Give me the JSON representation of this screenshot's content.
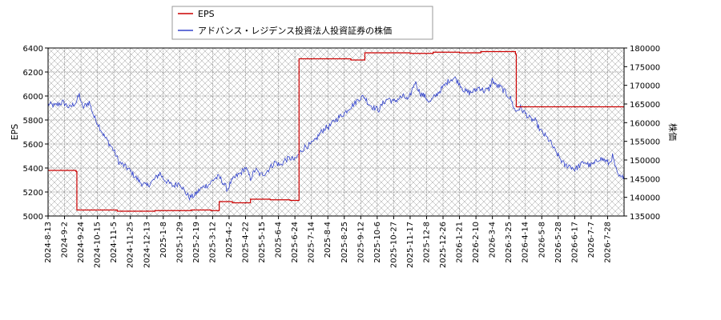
{
  "chart_data": {
    "type": "line",
    "title": "",
    "xlabel": "",
    "y_left_label": "EPS",
    "y_right_label": "株価",
    "y_left_range": [
      5000,
      6400
    ],
    "y_right_range": [
      135000,
      180000
    ],
    "y_left_ticks": [
      5000,
      5200,
      5400,
      5600,
      5800,
      6000,
      6200,
      6400
    ],
    "y_right_ticks": [
      "135000",
      "140000",
      "145000",
      "150000",
      "155000",
      "160000",
      "165000",
      "170000",
      "175000",
      "180000"
    ],
    "x_ticks": [
      "2024-8-13",
      "2024-9-2",
      "2024-9-24",
      "2024-10-15",
      "2024-11-5",
      "2024-11-25",
      "2024-12-13",
      "2025-1-8",
      "2025-1-29",
      "2025-2-19",
      "2025-3-12",
      "2025-4-2",
      "2025-4-22",
      "2025-5-15",
      "2025-6-4",
      "2025-6-24",
      "2025-7-14",
      "2025-8-4",
      "2025-8-25",
      "2025-9-12",
      "2025-10-6",
      "2025-10-27",
      "2025-11-17",
      "2025-12-8",
      "2025-12-26",
      "2026-1-21",
      "2026-2-10",
      "2026-3-4",
      "2026-3-25",
      "2026-4-14",
      "2026-5-8",
      "2026-5-28",
      "2026-6-17",
      "2026-7-7",
      "2026-7-28"
    ],
    "grid": true,
    "legend_position": "top-left",
    "colors": {
      "eps": "#cc0000",
      "price": "#3344cc",
      "grid": "#888888"
    },
    "series": [
      {
        "name": "EPS",
        "axis": "left",
        "steps": [
          [
            0,
            5380
          ],
          [
            1.7,
            5370
          ],
          [
            1.75,
            5050
          ],
          [
            4.2,
            5040
          ],
          [
            6.5,
            5045
          ],
          [
            8.7,
            5050
          ],
          [
            9.9,
            5045
          ],
          [
            10.4,
            5120
          ],
          [
            11.2,
            5110
          ],
          [
            12.3,
            5140
          ],
          [
            13.5,
            5135
          ],
          [
            14.7,
            5130
          ],
          [
            15.25,
            6310
          ],
          [
            18.4,
            6300
          ],
          [
            19.25,
            6360
          ],
          [
            22.0,
            6355
          ],
          [
            23.4,
            6365
          ],
          [
            25.0,
            6360
          ],
          [
            26.3,
            6370
          ],
          [
            28.4,
            6350
          ],
          [
            28.45,
            5910
          ],
          [
            35.0,
            5905
          ]
        ]
      },
      {
        "name": "アドバンス・レジデンス投資法人投資証券の株価",
        "axis": "right",
        "anchors": [
          [
            0,
            165000
          ],
          [
            0.4,
            164500
          ],
          [
            0.9,
            165500
          ],
          [
            1.3,
            164000
          ],
          [
            1.7,
            165500
          ],
          [
            1.9,
            167500
          ],
          [
            2.1,
            164000
          ],
          [
            2.5,
            165500
          ],
          [
            2.8,
            161500
          ],
          [
            3.0,
            160000
          ],
          [
            3.4,
            156500
          ],
          [
            3.7,
            154500
          ],
          [
            4.0,
            152500
          ],
          [
            4.3,
            149500
          ],
          [
            4.6,
            148500
          ],
          [
            4.9,
            147500
          ],
          [
            5.3,
            145500
          ],
          [
            5.6,
            144000
          ],
          [
            6.0,
            143000
          ],
          [
            6.4,
            144500
          ],
          [
            6.8,
            146500
          ],
          [
            7.0,
            145000
          ],
          [
            7.3,
            144000
          ],
          [
            7.6,
            143000
          ],
          [
            8.0,
            144000
          ],
          [
            8.3,
            141500
          ],
          [
            8.6,
            140000
          ],
          [
            8.9,
            140500
          ],
          [
            9.2,
            142000
          ],
          [
            9.5,
            143000
          ],
          [
            9.8,
            143500
          ],
          [
            10.1,
            145000
          ],
          [
            10.4,
            145500
          ],
          [
            10.7,
            143500
          ],
          [
            10.9,
            142000
          ],
          [
            11.1,
            144000
          ],
          [
            11.4,
            145500
          ],
          [
            11.7,
            146500
          ],
          [
            12.0,
            148000
          ],
          [
            12.3,
            145000
          ],
          [
            12.6,
            147500
          ],
          [
            12.9,
            146000
          ],
          [
            13.2,
            146500
          ],
          [
            13.5,
            148000
          ],
          [
            13.8,
            149500
          ],
          [
            14.1,
            148500
          ],
          [
            14.4,
            150000
          ],
          [
            14.7,
            150500
          ],
          [
            15.0,
            150000
          ],
          [
            15.3,
            152000
          ],
          [
            15.6,
            153500
          ],
          [
            15.9,
            154000
          ],
          [
            16.2,
            155000
          ],
          [
            16.5,
            157000
          ],
          [
            16.8,
            158500
          ],
          [
            17.1,
            159000
          ],
          [
            17.4,
            160500
          ],
          [
            17.7,
            161500
          ],
          [
            18.0,
            162500
          ],
          [
            18.3,
            164000
          ],
          [
            18.6,
            165000
          ],
          [
            18.9,
            166500
          ],
          [
            19.2,
            167000
          ],
          [
            19.5,
            165000
          ],
          [
            19.8,
            164000
          ],
          [
            20.1,
            163500
          ],
          [
            20.4,
            165500
          ],
          [
            20.7,
            166500
          ],
          [
            21.0,
            165500
          ],
          [
            21.3,
            166500
          ],
          [
            21.6,
            167000
          ],
          [
            21.9,
            166000
          ],
          [
            22.1,
            168500
          ],
          [
            22.3,
            171000
          ],
          [
            22.6,
            168000
          ],
          [
            22.9,
            167000
          ],
          [
            23.2,
            165500
          ],
          [
            23.5,
            167000
          ],
          [
            23.8,
            168500
          ],
          [
            24.1,
            170000
          ],
          [
            24.4,
            171500
          ],
          [
            24.7,
            172000
          ],
          [
            25.0,
            170500
          ],
          [
            25.3,
            168500
          ],
          [
            25.6,
            168000
          ],
          [
            25.9,
            168500
          ],
          [
            26.2,
            169500
          ],
          [
            26.5,
            168500
          ],
          [
            26.8,
            169000
          ],
          [
            27.0,
            171500
          ],
          [
            27.2,
            170000
          ],
          [
            27.5,
            169500
          ],
          [
            27.8,
            168000
          ],
          [
            28.1,
            166500
          ],
          [
            28.4,
            163000
          ],
          [
            28.7,
            164000
          ],
          [
            29.0,
            162500
          ],
          [
            29.3,
            161000
          ],
          [
            29.6,
            160500
          ],
          [
            29.9,
            158000
          ],
          [
            30.2,
            156500
          ],
          [
            30.5,
            155000
          ],
          [
            30.8,
            152500
          ],
          [
            31.1,
            150500
          ],
          [
            31.4,
            148500
          ],
          [
            31.7,
            148500
          ],
          [
            32.0,
            147500
          ],
          [
            32.3,
            148500
          ],
          [
            32.6,
            149500
          ],
          [
            32.9,
            148500
          ],
          [
            33.2,
            149000
          ],
          [
            33.5,
            150500
          ],
          [
            33.8,
            150000
          ],
          [
            34.1,
            149000
          ],
          [
            34.3,
            151000
          ],
          [
            34.6,
            146000
          ],
          [
            34.85,
            145000
          ],
          [
            35.0,
            146000
          ]
        ]
      }
    ]
  }
}
